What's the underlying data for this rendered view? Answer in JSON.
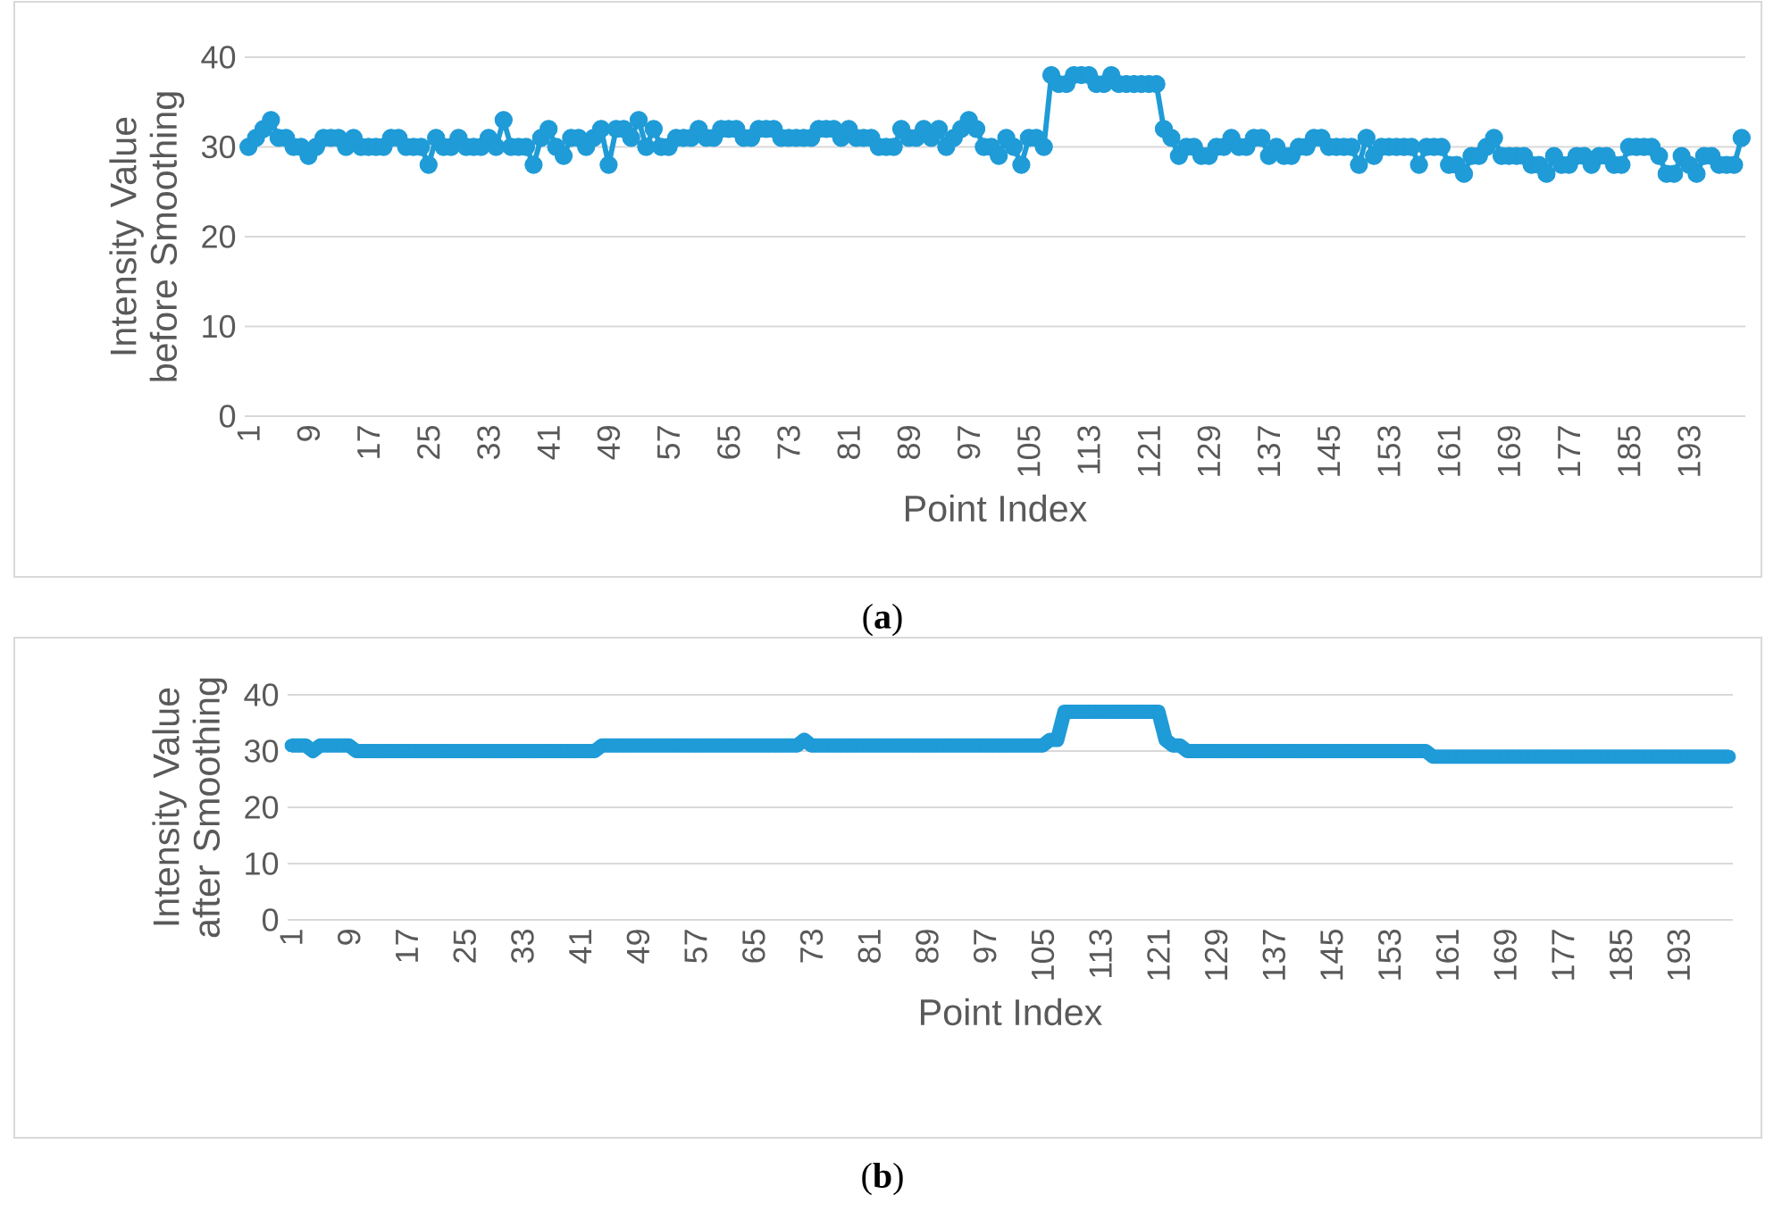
{
  "chart_data": [
    {
      "type": "line",
      "xlabel": "Point Index",
      "ylabel": "Intensity Value before Smoothing",
      "categories": [
        "1",
        null,
        null,
        null,
        null,
        null,
        null,
        null,
        "9",
        null,
        null,
        null,
        null,
        null,
        null,
        null,
        "17",
        null,
        null,
        null,
        null,
        null,
        null,
        null,
        "25",
        null,
        null,
        null,
        null,
        null,
        null,
        null,
        "33",
        null,
        null,
        null,
        null,
        null,
        null,
        null,
        "41",
        null,
        null,
        null,
        null,
        null,
        null,
        null,
        "49",
        null,
        null,
        null,
        null,
        null,
        null,
        null,
        "57",
        null,
        null,
        null,
        null,
        null,
        null,
        null,
        "65",
        null,
        null,
        null,
        null,
        null,
        null,
        null,
        "73",
        null,
        null,
        null,
        null,
        null,
        null,
        null,
        "81",
        null,
        null,
        null,
        null,
        null,
        null,
        null,
        "89",
        null,
        null,
        null,
        null,
        null,
        null,
        null,
        "97",
        null,
        null,
        null,
        null,
        null,
        null,
        null,
        "105",
        null,
        null,
        null,
        null,
        null,
        null,
        null,
        "113",
        null,
        null,
        null,
        null,
        null,
        null,
        null,
        "121",
        null,
        null,
        null,
        null,
        null,
        null,
        null,
        "129",
        null,
        null,
        null,
        null,
        null,
        null,
        null,
        "137",
        null,
        null,
        null,
        null,
        null,
        null,
        null,
        "145",
        null,
        null,
        null,
        null,
        null,
        null,
        null,
        "153",
        null,
        null,
        null,
        null,
        null,
        null,
        null,
        "161",
        null,
        null,
        null,
        null,
        null,
        null,
        null,
        "169",
        null,
        null,
        null,
        null,
        null,
        null,
        null,
        "177",
        null,
        null,
        null,
        null,
        null,
        null,
        null,
        "185",
        null,
        null,
        null,
        null,
        null,
        null,
        null,
        "193",
        null,
        null,
        null,
        null,
        null,
        null,
        null
      ],
      "series": [
        {
          "color": "#1f9bd7",
          "values": [
            30,
            31,
            32,
            33,
            31,
            31,
            30,
            30,
            29,
            30,
            31,
            31,
            31,
            30,
            31,
            30,
            30,
            30,
            30,
            31,
            31,
            30,
            30,
            30,
            28,
            31,
            30,
            30,
            31,
            30,
            30,
            30,
            31,
            30,
            33,
            30,
            30,
            30,
            28,
            31,
            32,
            30,
            29,
            31,
            31,
            30,
            31,
            32,
            28,
            32,
            32,
            31,
            33,
            30,
            32,
            30,
            30,
            31,
            31,
            31,
            32,
            31,
            31,
            32,
            32,
            32,
            31,
            31,
            32,
            32,
            32,
            31,
            31,
            31,
            31,
            31,
            32,
            32,
            32,
            31,
            32,
            31,
            31,
            31,
            30,
            30,
            30,
            32,
            31,
            31,
            32,
            31,
            32,
            30,
            31,
            32,
            33,
            32,
            30,
            30,
            29,
            31,
            30,
            28,
            31,
            31,
            30,
            38,
            37,
            37,
            38,
            38,
            38,
            37,
            37,
            38,
            37,
            37,
            37,
            37,
            37,
            37,
            32,
            31,
            29,
            30,
            30,
            29,
            29,
            30,
            30,
            31,
            30,
            30,
            31,
            31,
            29,
            30,
            29,
            29,
            30,
            30,
            31,
            31,
            30,
            30,
            30,
            30,
            28,
            31,
            29,
            30,
            30,
            30,
            30,
            30,
            28,
            30,
            30,
            30,
            28,
            28,
            27,
            29,
            29,
            30,
            31,
            29,
            29,
            29,
            29,
            28,
            28,
            27,
            29,
            28,
            28,
            29,
            29,
            28,
            29,
            29,
            28,
            28,
            30,
            30,
            30,
            30,
            29,
            27,
            27,
            29,
            28,
            27,
            29,
            29,
            28,
            28,
            28,
            31
          ]
        }
      ],
      "ylim": [
        0,
        40
      ],
      "yticks": [
        0,
        10,
        20,
        30,
        40
      ],
      "grid": "y",
      "marker": "circle",
      "line_style": "solid",
      "annotations": [
        "(**a**)"
      ]
    },
    {
      "type": "line",
      "xlabel": "Point Index",
      "ylabel": "Intensity Value after Smoothing",
      "categories": [
        "1",
        null,
        null,
        null,
        null,
        null,
        null,
        null,
        "9",
        null,
        null,
        null,
        null,
        null,
        null,
        null,
        "17",
        null,
        null,
        null,
        null,
        null,
        null,
        null,
        "25",
        null,
        null,
        null,
        null,
        null,
        null,
        null,
        "33",
        null,
        null,
        null,
        null,
        null,
        null,
        null,
        "41",
        null,
        null,
        null,
        null,
        null,
        null,
        null,
        "49",
        null,
        null,
        null,
        null,
        null,
        null,
        null,
        "57",
        null,
        null,
        null,
        null,
        null,
        null,
        null,
        "65",
        null,
        null,
        null,
        null,
        null,
        null,
        null,
        "73",
        null,
        null,
        null,
        null,
        null,
        null,
        null,
        "81",
        null,
        null,
        null,
        null,
        null,
        null,
        null,
        "89",
        null,
        null,
        null,
        null,
        null,
        null,
        null,
        "97",
        null,
        null,
        null,
        null,
        null,
        null,
        null,
        "105",
        null,
        null,
        null,
        null,
        null,
        null,
        null,
        "113",
        null,
        null,
        null,
        null,
        null,
        null,
        null,
        "121",
        null,
        null,
        null,
        null,
        null,
        null,
        null,
        "129",
        null,
        null,
        null,
        null,
        null,
        null,
        null,
        "137",
        null,
        null,
        null,
        null,
        null,
        null,
        null,
        "145",
        null,
        null,
        null,
        null,
        null,
        null,
        null,
        "153",
        null,
        null,
        null,
        null,
        null,
        null,
        null,
        "161",
        null,
        null,
        null,
        null,
        null,
        null,
        null,
        "169",
        null,
        null,
        null,
        null,
        null,
        null,
        null,
        "177",
        null,
        null,
        null,
        null,
        null,
        null,
        null,
        "185",
        null,
        null,
        null,
        null,
        null,
        null,
        null,
        "193",
        null,
        null,
        null,
        null,
        null,
        null,
        null
      ],
      "series": [
        {
          "color": "#1f9bd7",
          "values": [
            31,
            31,
            31,
            30,
            31,
            31,
            31,
            31,
            31,
            30,
            30,
            30,
            30,
            30,
            30,
            30,
            30,
            30,
            30,
            30,
            30,
            30,
            30,
            30,
            30,
            30,
            30,
            30,
            30,
            30,
            30,
            30,
            30,
            30,
            30,
            30,
            30,
            30,
            30,
            30,
            30,
            30,
            30,
            31,
            31,
            31,
            31,
            31,
            31,
            31,
            31,
            31,
            31,
            31,
            31,
            31,
            31,
            31,
            31,
            31,
            31,
            31,
            31,
            31,
            31,
            31,
            31,
            31,
            31,
            31,
            31,
            32,
            31,
            31,
            31,
            31,
            31,
            31,
            31,
            31,
            31,
            31,
            31,
            31,
            31,
            31,
            31,
            31,
            31,
            31,
            31,
            31,
            31,
            31,
            31,
            31,
            31,
            31,
            31,
            31,
            31,
            31,
            31,
            31,
            31,
            32,
            32,
            37,
            37,
            37,
            37,
            37,
            37,
            37,
            37,
            37,
            37,
            37,
            37,
            37,
            37,
            32,
            31,
            31,
            30,
            30,
            30,
            30,
            30,
            30,
            30,
            30,
            30,
            30,
            30,
            30,
            30,
            30,
            30,
            30,
            30,
            30,
            30,
            30,
            30,
            30,
            30,
            30,
            30,
            30,
            30,
            30,
            30,
            30,
            30,
            30,
            30,
            30,
            29,
            29,
            29,
            29,
            29,
            29,
            29,
            29,
            29,
            29,
            29,
            29,
            29,
            29,
            29,
            29,
            29,
            29,
            29,
            29,
            29,
            29,
            29,
            29,
            29,
            29,
            29,
            29,
            29,
            29,
            29,
            29,
            29,
            29,
            29,
            29,
            29,
            29,
            29,
            29,
            29,
            29
          ]
        }
      ],
      "ylim": [
        0,
        40
      ],
      "yticks": [
        0,
        10,
        20,
        30,
        40
      ],
      "grid": "y",
      "marker": "circle",
      "line_style": "solid",
      "annotations": [
        "(**b**)"
      ]
    }
  ]
}
